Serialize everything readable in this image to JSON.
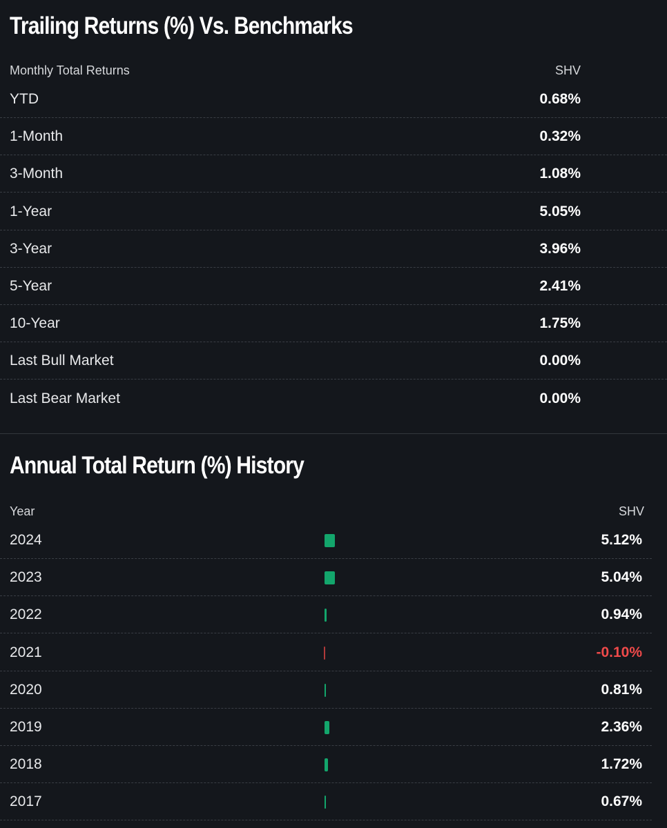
{
  "trailing": {
    "title": "Trailing Returns (%) Vs. Benchmarks",
    "header_label": "Monthly Total Returns",
    "header_ticker": "SHV",
    "rows": [
      {
        "label": "YTD",
        "value": "0.68%"
      },
      {
        "label": "1-Month",
        "value": "0.32%"
      },
      {
        "label": "3-Month",
        "value": "1.08%"
      },
      {
        "label": "1-Year",
        "value": "5.05%"
      },
      {
        "label": "3-Year",
        "value": "3.96%"
      },
      {
        "label": "5-Year",
        "value": "2.41%"
      },
      {
        "label": "10-Year",
        "value": "1.75%"
      },
      {
        "label": "Last Bull Market",
        "value": "0.00%"
      },
      {
        "label": "Last Bear Market",
        "value": "0.00%"
      }
    ]
  },
  "annual": {
    "title": "Annual Total Return (%) History",
    "header_label": "Year",
    "header_ticker": "SHV",
    "rows": [
      {
        "year": "2024",
        "value": "5.12%",
        "num": 5.12
      },
      {
        "year": "2023",
        "value": "5.04%",
        "num": 5.04
      },
      {
        "year": "2022",
        "value": "0.94%",
        "num": 0.94
      },
      {
        "year": "2021",
        "value": "-0.10%",
        "num": -0.1
      },
      {
        "year": "2020",
        "value": "0.81%",
        "num": 0.81
      },
      {
        "year": "2019",
        "value": "2.36%",
        "num": 2.36
      },
      {
        "year": "2018",
        "value": "1.72%",
        "num": 1.72
      },
      {
        "year": "2017",
        "value": "0.67%",
        "num": 0.67
      }
    ]
  },
  "colors": {
    "positive_bar": "#13a66c",
    "negative_bar": "#b13a3a",
    "negative_text": "#ef4a4a"
  }
}
